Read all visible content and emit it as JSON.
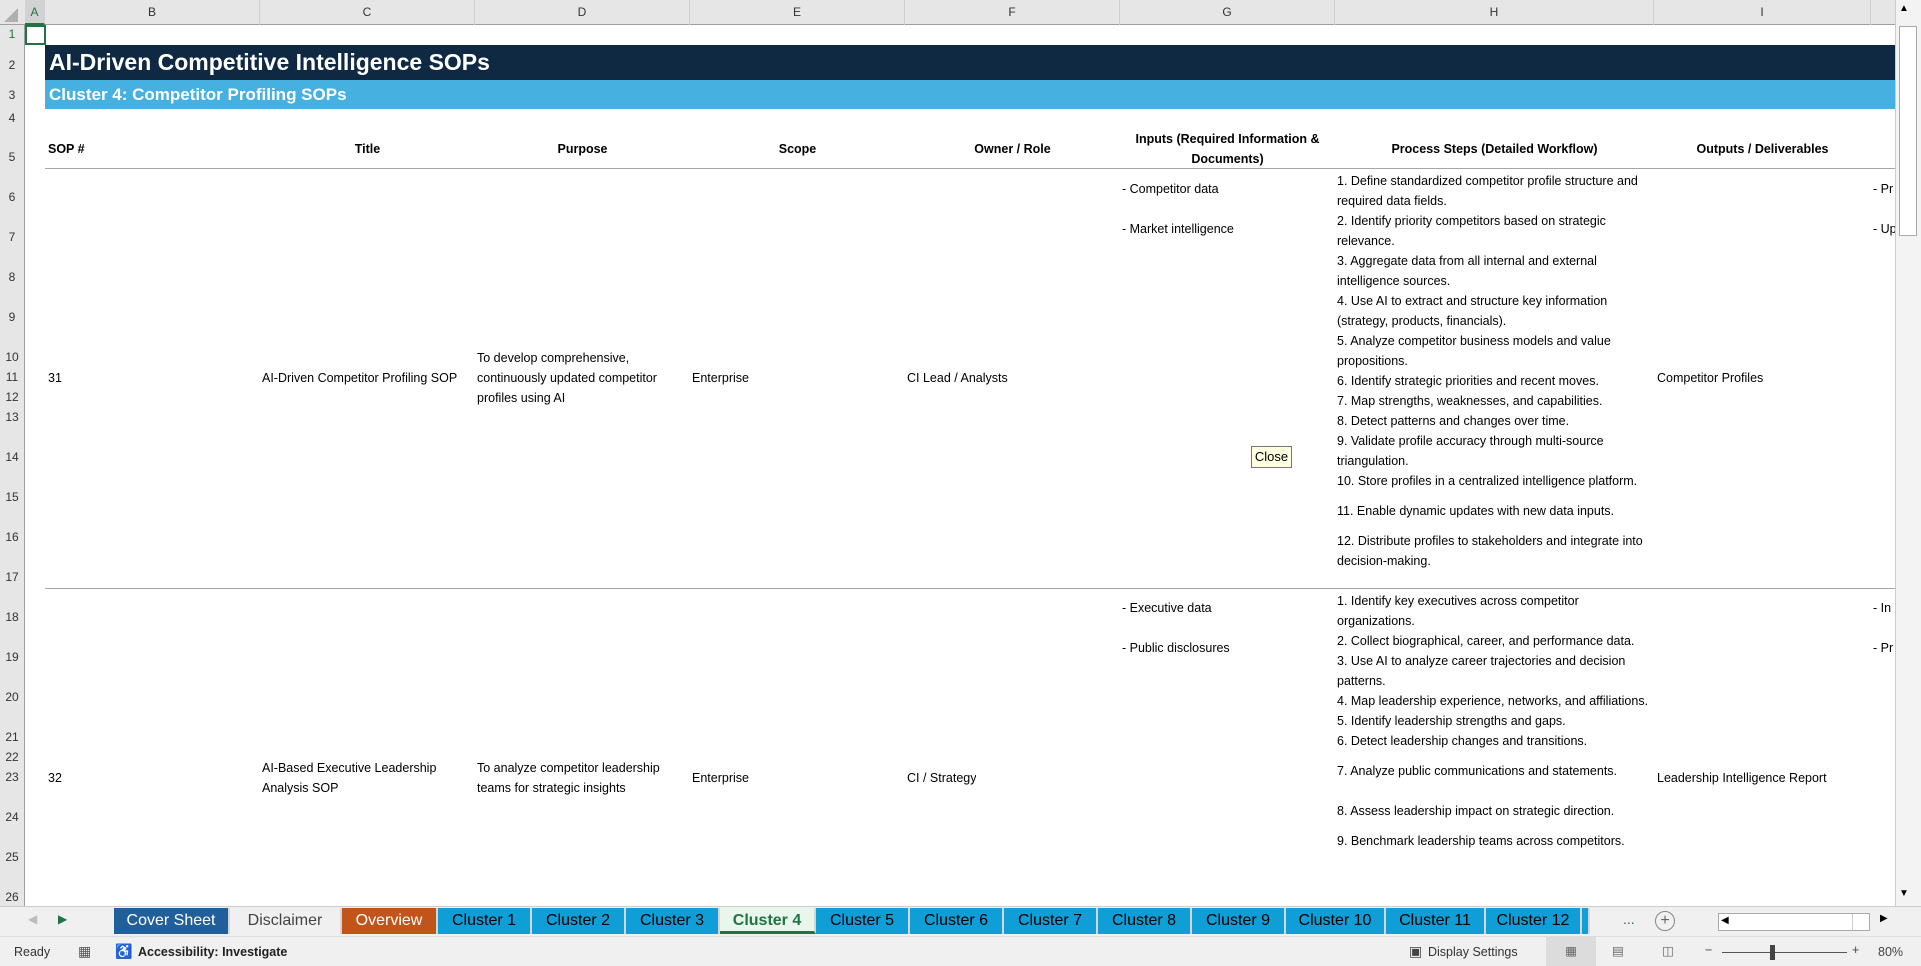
{
  "columns": [
    "A",
    "B",
    "C",
    "D",
    "E",
    "F",
    "G",
    "H",
    "I"
  ],
  "row_numbers": [
    "1",
    "2",
    "3",
    "4",
    "5",
    "6",
    "7",
    "8",
    "9",
    "10",
    "11",
    "12",
    "13",
    "14",
    "15",
    "16",
    "17",
    "18",
    "19",
    "20",
    "21",
    "22",
    "23",
    "24",
    "25",
    "26"
  ],
  "title": "AI-Driven Competitive Intelligence SOPs",
  "subtitle": "Cluster 4: Competitor Profiling SOPs",
  "headers": {
    "sop": "SOP #",
    "title": "Title",
    "purpose": "Purpose",
    "scope": "Scope",
    "owner": "Owner / Role",
    "inputs": "Inputs (Required Information & Documents)",
    "steps": "Process Steps (Detailed Workflow)",
    "outputs": "Outputs / Deliverables"
  },
  "rows": [
    {
      "sop": "31",
      "title": "AI-Driven Competitor Profiling SOP",
      "purpose": "To develop comprehensive, continuously updated competitor profiles using AI",
      "scope": "Enterprise",
      "owner": "CI Lead / Analysts",
      "inputs": [
        "- Competitor data",
        "- Market intelligence"
      ],
      "steps": [
        "1. Define standardized competitor profile structure and required data fields.",
        "2. Identify priority competitors based on strategic relevance.",
        "3. Aggregate data from all internal and external intelligence sources.",
        "4. Use AI to extract and structure key information (strategy, products, financials).",
        "5. Analyze competitor business models and value propositions.",
        "6. Identify strategic priorities and recent moves.",
        "7. Map strengths, weaknesses, and capabilities.",
        "8. Detect patterns and changes over time.",
        "9. Validate profile accuracy through multi-source triangulation.",
        "10. Store profiles in a centralized intelligence platform.",
        "11. Enable dynamic updates with new data inputs.",
        "12. Distribute profiles to stakeholders and integrate into decision-making."
      ],
      "outputs": "Competitor Profiles",
      "next_col": [
        "- Pr",
        "- Up"
      ]
    },
    {
      "sop": "32",
      "title": "AI-Based Executive Leadership Analysis SOP",
      "purpose": "To analyze competitor leadership teams for strategic insights",
      "scope": "Enterprise",
      "owner": "CI / Strategy",
      "inputs": [
        "- Executive data",
        "- Public disclosures"
      ],
      "steps": [
        "1. Identify key executives across competitor organizations.",
        "2. Collect biographical, career, and performance data.",
        "3. Use AI to analyze career trajectories and decision patterns.",
        "4. Map leadership experience, networks, and affiliations.",
        "5. Identify leadership strengths and gaps.",
        "6. Detect leadership changes and transitions.",
        "7. Analyze public communications and statements.",
        "8. Assess leadership impact on strategic direction.",
        "9. Benchmark leadership teams across competitors."
      ],
      "outputs": "Leadership Intelligence Report",
      "next_col": [
        "- In",
        "- Pr"
      ]
    }
  ],
  "close_button": "Close",
  "tabs": [
    {
      "label": "Cover Sheet",
      "bg": "#215f9a",
      "fg": "#ffffff"
    },
    {
      "label": "Disclaimer",
      "bg": "#f0f0f0",
      "fg": "#444444"
    },
    {
      "label": "Overview",
      "bg": "#c0541a",
      "fg": "#ffffff"
    },
    {
      "label": "Cluster 1",
      "bg": "#0f9ed5",
      "fg": "#000000"
    },
    {
      "label": "Cluster 2",
      "bg": "#0f9ed5",
      "fg": "#000000"
    },
    {
      "label": "Cluster 3",
      "bg": "#0f9ed5",
      "fg": "#000000"
    },
    {
      "label": "Cluster 4",
      "bg": "#e8f6ec",
      "fg": "#217346",
      "active": true
    },
    {
      "label": "Cluster 5",
      "bg": "#0f9ed5",
      "fg": "#000000"
    },
    {
      "label": "Cluster 6",
      "bg": "#0f9ed5",
      "fg": "#000000"
    },
    {
      "label": "Cluster 7",
      "bg": "#0f9ed5",
      "fg": "#000000"
    },
    {
      "label": "Cluster 8",
      "bg": "#0f9ed5",
      "fg": "#000000"
    },
    {
      "label": "Cluster 9",
      "bg": "#0f9ed5",
      "fg": "#000000"
    },
    {
      "label": "Cluster 10",
      "bg": "#0f9ed5",
      "fg": "#000000"
    },
    {
      "label": "Cluster 11",
      "bg": "#0f9ed5",
      "fg": "#000000"
    },
    {
      "label": "Cluster 12",
      "bg": "#0f9ed5",
      "fg": "#000000"
    }
  ],
  "tab_more": "...",
  "status": {
    "ready": "Ready",
    "accessibility": "Accessibility: Investigate",
    "display_settings": "Display Settings",
    "zoom": "80%",
    "zoom_level_percent": 80
  }
}
